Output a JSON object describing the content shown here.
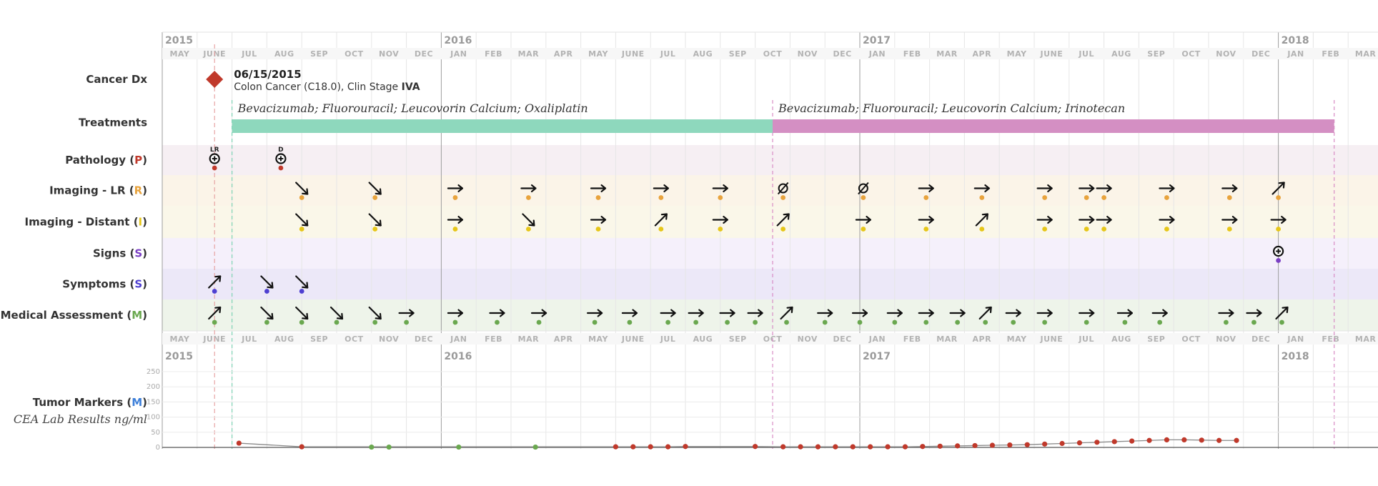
{
  "years_top": [
    {
      "label": "2015",
      "m": 0
    },
    {
      "label": "2016",
      "m": 8
    },
    {
      "label": "2017",
      "m": 20
    },
    {
      "label": "2018",
      "m": 32
    }
  ],
  "months": [
    "MAY",
    "JUNE",
    "JUL",
    "AUG",
    "SEP",
    "OCT",
    "NOV",
    "DEC",
    "JAN",
    "FEB",
    "MAR",
    "APR",
    "MAY",
    "JUNE",
    "JUL",
    "AUG",
    "SEP",
    "OCT",
    "NOV",
    "DEC",
    "JAN",
    "FEB",
    "MAR",
    "APR",
    "MAY",
    "JUNE",
    "JUL",
    "AUG",
    "SEP",
    "OCT",
    "NOV",
    "DEC",
    "JAN",
    "FEB",
    "MAR"
  ],
  "rows": [
    {
      "key": "dx",
      "label": "Cancer Dx",
      "code": "",
      "code_color": ""
    },
    {
      "key": "tx",
      "label": "Treatments",
      "code": "",
      "code_color": ""
    },
    {
      "key": "path",
      "label": "Pathology",
      "code": "P",
      "code_color": "#c0392b"
    },
    {
      "key": "imglr",
      "label": "Imaging - LR",
      "code": "R",
      "code_color": "#e8a33d"
    },
    {
      "key": "imgd",
      "label": "Imaging - Distant",
      "code": "I",
      "code_color": "#e6c619"
    },
    {
      "key": "signs",
      "label": "Signs",
      "code": "S",
      "code_color": "#7b3fc4"
    },
    {
      "key": "sym",
      "label": "Symptoms",
      "code": "S",
      "code_color": "#4e3fd1"
    },
    {
      "key": "med",
      "label": "Medical Assessment",
      "code": "M",
      "code_color": "#6aa84f"
    }
  ],
  "row_colors": {
    "path": "#f6eff3",
    "imglr": "#fbf4e8",
    "imgd": "#faf7e9",
    "signs": "#f5f0fb",
    "sym": "#ece8f8",
    "med": "#eef4ea"
  },
  "dot_colors": {
    "path": "#c0392b",
    "imglr": "#e8a33d",
    "imgd": "#e6c619",
    "signs": "#7b3fc4",
    "sym": "#4e3fd1",
    "med": "#6aa84f"
  },
  "diagnosis": {
    "date": "06/15/2015",
    "description": "Colon Cancer (C18.0), Clin Stage ",
    "stage": "IVA",
    "m": 1.5,
    "color": "#c0392b"
  },
  "treatments": [
    {
      "label": "Bevacizumab; Fluorouracil; Leucovorin Calcium; Oxaliplatin",
      "start": 2.0,
      "end": 17.5,
      "color": "#8ed8bd",
      "line_color": "#7dd3b4"
    },
    {
      "label": "Bevacizumab; Fluorouracil; Leucovorin Calcium; Irinotecan",
      "start": 17.5,
      "end": 33.6,
      "color": "#d48fc3",
      "line_color": "#d88cc5"
    }
  ],
  "pathology": [
    {
      "m": 1.5,
      "label": "LR"
    },
    {
      "m": 3.4,
      "label": "D"
    }
  ],
  "imaging_lr": [
    {
      "m": 4.0,
      "d": "down"
    },
    {
      "m": 6.1,
      "d": "down"
    },
    {
      "m": 8.4,
      "d": "right"
    },
    {
      "m": 10.5,
      "d": "right"
    },
    {
      "m": 12.5,
      "d": "right"
    },
    {
      "m": 14.3,
      "d": "right"
    },
    {
      "m": 16.0,
      "d": "right"
    },
    {
      "m": 17.8,
      "d": "null"
    },
    {
      "m": 20.1,
      "d": "null"
    },
    {
      "m": 21.9,
      "d": "right"
    },
    {
      "m": 23.5,
      "d": "right"
    },
    {
      "m": 25.3,
      "d": "right"
    },
    {
      "m": 26.5,
      "d": "right"
    },
    {
      "m": 27.0,
      "d": "right"
    },
    {
      "m": 28.8,
      "d": "right"
    },
    {
      "m": 30.6,
      "d": "right"
    },
    {
      "m": 32.0,
      "d": "up"
    }
  ],
  "imaging_distant": [
    {
      "m": 4.0,
      "d": "down"
    },
    {
      "m": 6.1,
      "d": "down"
    },
    {
      "m": 8.4,
      "d": "right"
    },
    {
      "m": 10.5,
      "d": "down"
    },
    {
      "m": 12.5,
      "d": "right"
    },
    {
      "m": 14.3,
      "d": "up"
    },
    {
      "m": 16.0,
      "d": "right"
    },
    {
      "m": 17.8,
      "d": "up"
    },
    {
      "m": 20.1,
      "d": "right"
    },
    {
      "m": 21.9,
      "d": "right"
    },
    {
      "m": 23.5,
      "d": "up"
    },
    {
      "m": 25.3,
      "d": "right"
    },
    {
      "m": 26.5,
      "d": "right"
    },
    {
      "m": 27.0,
      "d": "right"
    },
    {
      "m": 28.8,
      "d": "right"
    },
    {
      "m": 30.6,
      "d": "right"
    },
    {
      "m": 32.0,
      "d": "right"
    }
  ],
  "signs": [
    {
      "m": 32.0,
      "d": "plus"
    }
  ],
  "symptoms": [
    {
      "m": 1.5,
      "d": "up"
    },
    {
      "m": 3.0,
      "d": "down"
    },
    {
      "m": 4.0,
      "d": "down"
    }
  ],
  "medical": [
    {
      "m": 1.5,
      "d": "up"
    },
    {
      "m": 3.0,
      "d": "down"
    },
    {
      "m": 4.0,
      "d": "down"
    },
    {
      "m": 5.0,
      "d": "down"
    },
    {
      "m": 6.1,
      "d": "down"
    },
    {
      "m": 7.0,
      "d": "right"
    },
    {
      "m": 8.4,
      "d": "right"
    },
    {
      "m": 9.6,
      "d": "right"
    },
    {
      "m": 10.8,
      "d": "right"
    },
    {
      "m": 12.4,
      "d": "right"
    },
    {
      "m": 13.4,
      "d": "right"
    },
    {
      "m": 14.5,
      "d": "right"
    },
    {
      "m": 15.3,
      "d": "right"
    },
    {
      "m": 16.2,
      "d": "right"
    },
    {
      "m": 17.0,
      "d": "right"
    },
    {
      "m": 17.9,
      "d": "up"
    },
    {
      "m": 19.0,
      "d": "right"
    },
    {
      "m": 20.0,
      "d": "right"
    },
    {
      "m": 21.0,
      "d": "right"
    },
    {
      "m": 21.9,
      "d": "right"
    },
    {
      "m": 22.8,
      "d": "right"
    },
    {
      "m": 23.6,
      "d": "up"
    },
    {
      "m": 24.4,
      "d": "right"
    },
    {
      "m": 25.3,
      "d": "right"
    },
    {
      "m": 26.5,
      "d": "right"
    },
    {
      "m": 27.6,
      "d": "right"
    },
    {
      "m": 28.6,
      "d": "right"
    },
    {
      "m": 30.5,
      "d": "right"
    },
    {
      "m": 31.3,
      "d": "right"
    },
    {
      "m": 32.1,
      "d": "up"
    }
  ],
  "markers": {
    "title": "Tumor Markers",
    "code": "M",
    "code_color": "#3d7fd9",
    "subtitle": "CEA Lab Results ng/ml",
    "y_ticks": [
      0,
      50,
      100,
      150,
      200,
      250
    ],
    "y_max": 250
  },
  "chart_data": {
    "type": "scatter",
    "title": "",
    "xlabel": "",
    "ylabel": "CEA Lab Results ng/ml",
    "ylim": [
      0,
      250
    ],
    "series": [
      {
        "name": "",
        "color": "#c0392b",
        "x": [
          2.2,
          4.0,
          13.0,
          13.5,
          14.0,
          14.5,
          15.0,
          17.0,
          17.8,
          18.3,
          18.8,
          19.3,
          19.8,
          20.3,
          20.8,
          21.3,
          21.8,
          22.3,
          22.8,
          23.3,
          23.8,
          24.3,
          24.8,
          25.3,
          25.8,
          26.3,
          26.8,
          27.3,
          27.8,
          28.3,
          28.8,
          29.3,
          29.8,
          30.3,
          30.8
        ],
        "y": [
          14,
          2,
          2,
          2,
          2,
          2,
          3,
          3,
          2,
          2,
          2,
          2,
          2,
          2,
          2,
          2,
          3,
          4,
          5,
          6,
          7,
          8,
          9,
          11,
          13,
          15,
          17,
          19,
          21,
          23,
          25,
          25,
          24,
          23,
          23
        ]
      },
      {
        "name": "",
        "color": "#6aa84f",
        "x": [
          6.0,
          6.5,
          8.5,
          10.7
        ],
        "y": [
          1,
          1,
          1,
          1
        ]
      }
    ]
  }
}
